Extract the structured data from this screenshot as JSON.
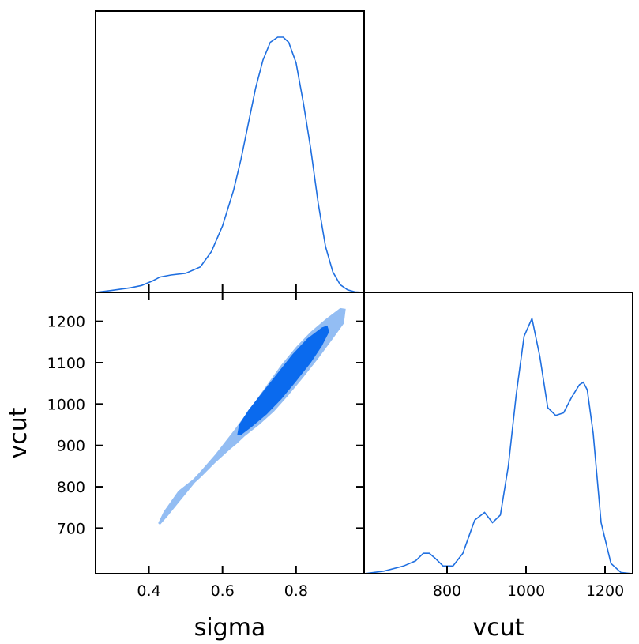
{
  "chart_data": {
    "type": "corner-plot",
    "parameters": [
      "sigma",
      "vcut"
    ],
    "xlabels": {
      "sigma": "sigma",
      "vcut": "vcut"
    },
    "ylabels": {
      "vcut": "vcut"
    },
    "colors": {
      "line": "#1f6fe0",
      "fill_68": "#0a6aee",
      "fill_95": "#93bdf3"
    },
    "ranges": {
      "sigma": [
        0.255,
        0.985
      ],
      "vcut": [
        590,
        1270
      ]
    },
    "ticks": {
      "sigma": [
        0.4,
        0.6,
        0.8
      ],
      "sigma_labels": [
        "0.4",
        "0.6",
        "0.8"
      ],
      "vcut": [
        700,
        800,
        900,
        1000,
        1100,
        1200
      ],
      "vcut_labels": [
        "700",
        "800",
        "900",
        "1000",
        "1100",
        "1200"
      ],
      "vcut_bottom": [
        800,
        1000,
        1200
      ],
      "vcut_bottom_labels": [
        "800",
        "1000",
        "1200"
      ]
    },
    "marginal_sigma": {
      "x": [
        0.255,
        0.3,
        0.35,
        0.38,
        0.41,
        0.43,
        0.46,
        0.5,
        0.54,
        0.57,
        0.6,
        0.63,
        0.65,
        0.67,
        0.69,
        0.71,
        0.73,
        0.75,
        0.765,
        0.78,
        0.8,
        0.82,
        0.84,
        0.86,
        0.88,
        0.9,
        0.92,
        0.94,
        0.96,
        0.985
      ],
      "y": [
        0.0,
        0.008,
        0.018,
        0.027,
        0.045,
        0.06,
        0.068,
        0.075,
        0.1,
        0.16,
        0.26,
        0.4,
        0.52,
        0.66,
        0.8,
        0.91,
        0.98,
        1.0,
        1.0,
        0.98,
        0.9,
        0.74,
        0.56,
        0.35,
        0.18,
        0.08,
        0.03,
        0.01,
        0.002,
        0.0
      ]
    },
    "marginal_vcut": {
      "x": [
        590,
        640,
        690,
        720,
        740,
        755,
        770,
        790,
        815,
        840,
        870,
        895,
        915,
        935,
        955,
        975,
        995,
        1015,
        1035,
        1055,
        1075,
        1095,
        1115,
        1135,
        1145,
        1155,
        1170,
        1190,
        1215,
        1240,
        1270
      ],
      "y": [
        0.0,
        0.01,
        0.03,
        0.05,
        0.08,
        0.08,
        0.06,
        0.03,
        0.03,
        0.08,
        0.21,
        0.24,
        0.2,
        0.23,
        0.42,
        0.7,
        0.93,
        1.0,
        0.85,
        0.65,
        0.62,
        0.63,
        0.69,
        0.74,
        0.75,
        0.72,
        0.55,
        0.2,
        0.04,
        0.005,
        0.0
      ]
    },
    "joint_contour_95": [
      [
        0.425,
        712
      ],
      [
        0.44,
        740
      ],
      [
        0.48,
        790
      ],
      [
        0.52,
        818
      ],
      [
        0.535,
        832
      ],
      [
        0.58,
        878
      ],
      [
        0.63,
        935
      ],
      [
        0.68,
        995
      ],
      [
        0.72,
        1045
      ],
      [
        0.76,
        1095
      ],
      [
        0.8,
        1138
      ],
      [
        0.84,
        1175
      ],
      [
        0.88,
        1205
      ],
      [
        0.92,
        1232
      ],
      [
        0.935,
        1230
      ],
      [
        0.93,
        1195
      ],
      [
        0.9,
        1158
      ],
      [
        0.86,
        1110
      ],
      [
        0.82,
        1065
      ],
      [
        0.78,
        1022
      ],
      [
        0.74,
        982
      ],
      [
        0.7,
        950
      ],
      [
        0.66,
        922
      ],
      [
        0.64,
        905
      ],
      [
        0.62,
        890
      ],
      [
        0.58,
        858
      ],
      [
        0.54,
        822
      ],
      [
        0.525,
        810
      ],
      [
        0.49,
        772
      ],
      [
        0.45,
        728
      ],
      [
        0.43,
        708
      ]
    ],
    "joint_contour_68": [
      [
        0.64,
        925
      ],
      [
        0.645,
        950
      ],
      [
        0.67,
        985
      ],
      [
        0.71,
        1030
      ],
      [
        0.75,
        1075
      ],
      [
        0.79,
        1120
      ],
      [
        0.83,
        1158
      ],
      [
        0.87,
        1185
      ],
      [
        0.885,
        1190
      ],
      [
        0.89,
        1175
      ],
      [
        0.87,
        1140
      ],
      [
        0.84,
        1100
      ],
      [
        0.8,
        1055
      ],
      [
        0.76,
        1012
      ],
      [
        0.72,
        975
      ],
      [
        0.68,
        945
      ],
      [
        0.65,
        925
      ]
    ]
  }
}
